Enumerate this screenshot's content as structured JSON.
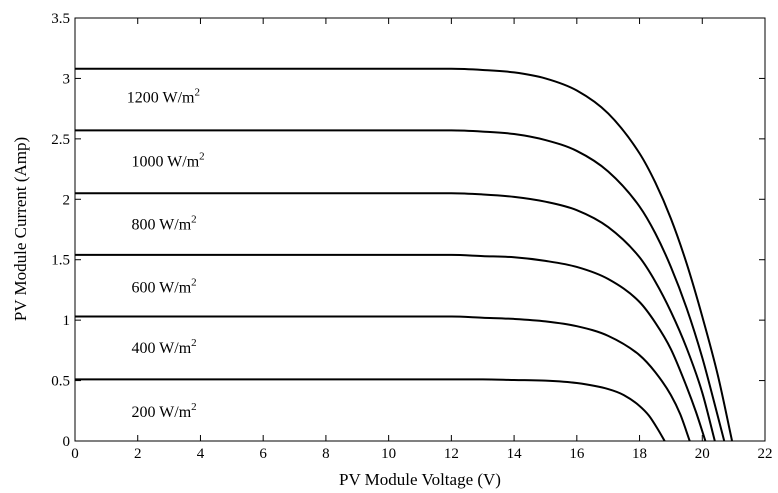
{
  "chart_data": {
    "type": "line",
    "title": "",
    "xlabel": "PV Module Voltage (V)",
    "ylabel": "PV Module Current (Amp)",
    "xlim": [
      0,
      22
    ],
    "ylim": [
      0,
      3.5
    ],
    "x_ticks": [
      0,
      2,
      4,
      6,
      8,
      10,
      12,
      14,
      16,
      18,
      20,
      22
    ],
    "y_ticks": [
      0,
      0.5,
      1,
      1.5,
      2,
      2.5,
      3,
      3.5
    ],
    "x_tick_labels": [
      "0",
      "2",
      "4",
      "6",
      "8",
      "10",
      "12",
      "14",
      "16",
      "18",
      "20",
      "22"
    ],
    "y_tick_labels": [
      "0",
      "0.5",
      "1",
      "1.5",
      "2",
      "2.5",
      "3",
      "3.5"
    ],
    "grid": false,
    "legend": "none",
    "series": [
      {
        "label": "200 W/m2",
        "label_main": "200 W/m",
        "label_sup": "2",
        "x": [
          0,
          10,
          12,
          13,
          14,
          15,
          16,
          17,
          17.5,
          18,
          18.3,
          18.6,
          18.8
        ],
        "y": [
          0.51,
          0.51,
          0.51,
          0.51,
          0.505,
          0.5,
          0.48,
          0.43,
          0.38,
          0.29,
          0.21,
          0.09,
          0.0
        ]
      },
      {
        "label": "400 W/m2",
        "label_main": "400 W/m",
        "label_sup": "2",
        "x": [
          0,
          10,
          12,
          13,
          14,
          15,
          16,
          17,
          18,
          18.5,
          19,
          19.3,
          19.6
        ],
        "y": [
          1.03,
          1.03,
          1.03,
          1.02,
          1.01,
          0.99,
          0.95,
          0.87,
          0.71,
          0.57,
          0.38,
          0.22,
          0.0
        ]
      },
      {
        "label": "600 W/m2",
        "label_main": "600 W/m",
        "label_sup": "2",
        "x": [
          0,
          10,
          12,
          13,
          14,
          15,
          16,
          17,
          18,
          18.5,
          19,
          19.5,
          19.8,
          20.1
        ],
        "y": [
          1.54,
          1.54,
          1.54,
          1.53,
          1.52,
          1.49,
          1.44,
          1.34,
          1.15,
          0.98,
          0.76,
          0.45,
          0.24,
          0.0
        ]
      },
      {
        "label": "800 W/m2",
        "label_main": "800 W/m",
        "label_sup": "2",
        "x": [
          0,
          10,
          12,
          13,
          14,
          15,
          16,
          17,
          18,
          18.5,
          19,
          19.5,
          20,
          20.4
        ],
        "y": [
          2.05,
          2.05,
          2.05,
          2.04,
          2.02,
          1.98,
          1.91,
          1.77,
          1.52,
          1.32,
          1.07,
          0.77,
          0.4,
          0.0
        ]
      },
      {
        "label": "1000 W/m2",
        "label_main": "1000 W/m",
        "label_sup": "2",
        "x": [
          0,
          10,
          12,
          13,
          14,
          15,
          16,
          17,
          18,
          18.5,
          19,
          19.5,
          20,
          20.4,
          20.7
        ],
        "y": [
          2.57,
          2.57,
          2.57,
          2.56,
          2.54,
          2.49,
          2.4,
          2.23,
          1.94,
          1.72,
          1.44,
          1.1,
          0.69,
          0.3,
          0.0
        ]
      },
      {
        "label": "1200 W/m2",
        "label_main": "1200 W/m",
        "label_sup": "2",
        "x": [
          0,
          10,
          12,
          13,
          14,
          15,
          16,
          17,
          18,
          18.5,
          19,
          19.5,
          20,
          20.5,
          20.95
        ],
        "y": [
          3.08,
          3.08,
          3.08,
          3.07,
          3.05,
          3.0,
          2.9,
          2.71,
          2.38,
          2.14,
          1.84,
          1.47,
          1.03,
          0.54,
          0.0
        ]
      }
    ],
    "annotations": [
      {
        "series": 5,
        "text_main": "1200 W/m",
        "text_sup": "2",
        "at_x": 1.65,
        "at_y": 2.8
      },
      {
        "series": 4,
        "text_main": "1000 W/m",
        "text_sup": "2",
        "at_x": 1.8,
        "at_y": 2.27
      },
      {
        "series": 3,
        "text_main": "800 W/m",
        "text_sup": "2",
        "at_x": 1.8,
        "at_y": 1.75
      },
      {
        "series": 2,
        "text_main": "600 W/m",
        "text_sup": "2",
        "at_x": 1.8,
        "at_y": 1.23
      },
      {
        "series": 1,
        "text_main": "400 W/m",
        "text_sup": "2",
        "at_x": 1.8,
        "at_y": 0.73
      },
      {
        "series": 0,
        "text_main": "200 W/m",
        "text_sup": "2",
        "at_x": 1.8,
        "at_y": 0.2
      }
    ]
  }
}
